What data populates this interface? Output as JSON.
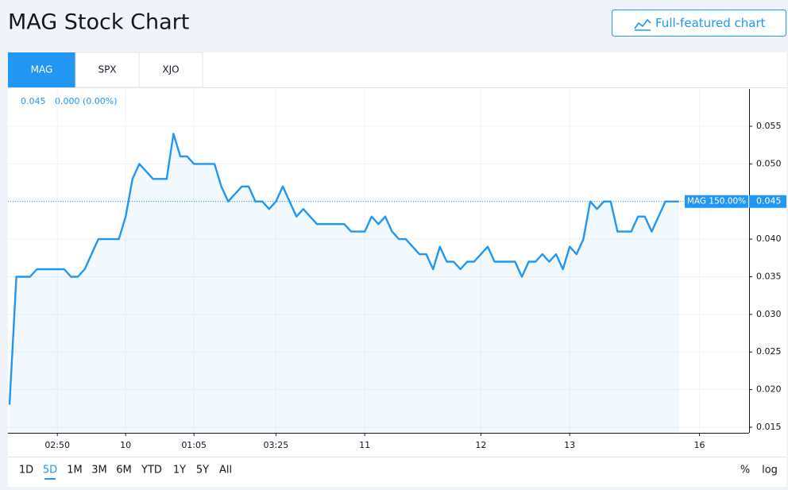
{
  "header": {
    "title": "MAG Stock Chart",
    "button": "Full-featured chart"
  },
  "tabs": [
    "MAG",
    "SPX",
    "XJO"
  ],
  "legend": {
    "value": "0.045",
    "change": "0.000 (0.00%)"
  },
  "ranges": [
    "1D",
    "5D",
    "1M",
    "3M",
    "6M",
    "YTD",
    "1Y",
    "5Y",
    "All"
  ],
  "scale_buttons": [
    "%",
    "log"
  ],
  "chart_data": {
    "type": "line",
    "series": [
      {
        "name": "MAG",
        "color": "#2196f3",
        "x": [
          0,
          1,
          3,
          4,
          8,
          9,
          10,
          11,
          12,
          13,
          16,
          17,
          18,
          19,
          20,
          21,
          23,
          24,
          25,
          26,
          27,
          30,
          31,
          32,
          33,
          34,
          35,
          36,
          37,
          38,
          39,
          40,
          41,
          42,
          43,
          44,
          45,
          49,
          50,
          52,
          53,
          54,
          55,
          56,
          57,
          58,
          60,
          61,
          62,
          63,
          64,
          65,
          66,
          67,
          68,
          69,
          70,
          71,
          74,
          75,
          76,
          77,
          78,
          79,
          80,
          81,
          82,
          83,
          84,
          85,
          86,
          87,
          88,
          89,
          91,
          92,
          93,
          94,
          95,
          96,
          98
        ],
        "values": [
          0.018,
          0.035,
          0.035,
          0.036,
          0.036,
          0.035,
          0.035,
          0.036,
          0.038,
          0.04,
          0.04,
          0.043,
          0.048,
          0.05,
          0.049,
          0.048,
          0.048,
          0.054,
          0.051,
          0.051,
          0.05,
          0.05,
          0.047,
          0.045,
          0.046,
          0.047,
          0.047,
          0.045,
          0.045,
          0.044,
          0.045,
          0.047,
          0.045,
          0.043,
          0.044,
          0.043,
          0.042,
          0.042,
          0.041,
          0.041,
          0.043,
          0.042,
          0.043,
          0.041,
          0.04,
          0.04,
          0.038,
          0.038,
          0.036,
          0.039,
          0.037,
          0.037,
          0.036,
          0.037,
          0.037,
          0.038,
          0.039,
          0.037,
          0.037,
          0.035,
          0.037,
          0.037,
          0.038,
          0.037,
          0.038,
          0.036,
          0.039,
          0.038,
          0.04,
          0.045,
          0.044,
          0.045,
          0.045,
          0.041,
          0.041,
          0.043,
          0.043,
          0.041,
          0.043,
          0.045,
          0.045
        ]
      }
    ],
    "last_value": 0.045,
    "last_value_label": "0.045",
    "last_label": "MAG 150.00%",
    "xlim": [
      -0.23,
      108.26
    ],
    "xticks": [
      {
        "value": 7,
        "label": "02:50"
      },
      {
        "value": 17,
        "label": "10"
      },
      {
        "value": 27,
        "label": "01:05"
      },
      {
        "value": 39,
        "label": "03:25"
      },
      {
        "value": 52,
        "label": "11"
      },
      {
        "value": 69,
        "label": "12"
      },
      {
        "value": 82,
        "label": "13"
      },
      {
        "value": 101,
        "label": "16"
      }
    ],
    "ylim": [
      0.01426,
      0.05996
    ],
    "yticks": [
      {
        "value": 0.015,
        "label": "0.015"
      },
      {
        "value": 0.02,
        "label": "0.020"
      },
      {
        "value": 0.025,
        "label": "0.025"
      },
      {
        "value": 0.03,
        "label": "0.030"
      },
      {
        "value": 0.035,
        "label": "0.035"
      },
      {
        "value": 0.04,
        "label": "0.040"
      },
      {
        "value": 0.045,
        "label": "0.045"
      },
      {
        "value": 0.05,
        "label": "0.050"
      },
      {
        "value": 0.055,
        "label": "0.055"
      }
    ],
    "grid": true
  }
}
